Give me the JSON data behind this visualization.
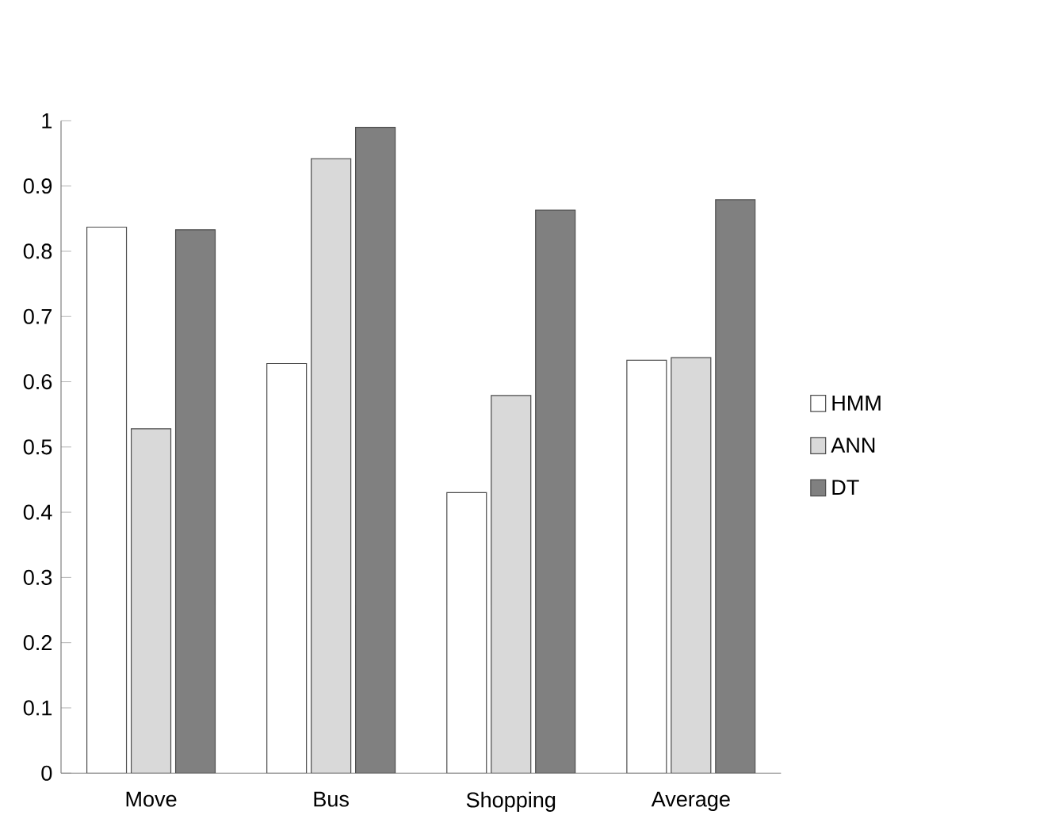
{
  "chart_data": {
    "type": "bar",
    "categories": [
      "Move",
      "Bus",
      "Shopping",
      "Average"
    ],
    "series": [
      {
        "name": "HMM",
        "color": "#ffffff",
        "values": [
          0.837,
          0.628,
          0.43,
          0.633
        ]
      },
      {
        "name": "ANN",
        "color": "#d9d9d9",
        "values": [
          0.528,
          0.942,
          0.579,
          0.637
        ]
      },
      {
        "name": "DT",
        "color": "#808080",
        "values": [
          0.833,
          0.99,
          0.863,
          0.879
        ]
      }
    ],
    "ylim": [
      0,
      1
    ],
    "yticks": [
      0,
      0.1,
      0.2,
      0.3,
      0.4,
      0.5,
      0.6,
      0.7,
      0.8,
      0.9,
      1
    ],
    "grid": false,
    "legend": "right"
  }
}
